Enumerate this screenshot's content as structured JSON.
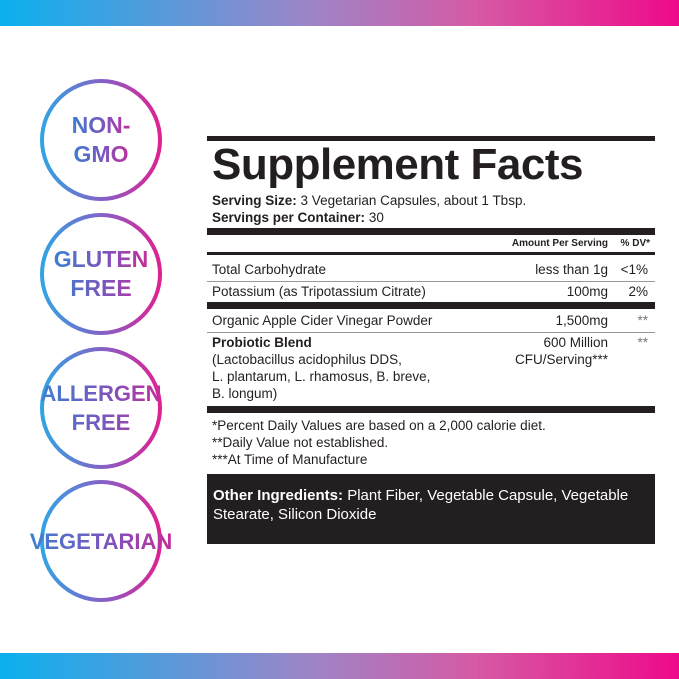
{
  "colors": {
    "gradient_start": "#0bb0ee",
    "gradient_end": "#ee0a8a",
    "panel": "#231f20"
  },
  "badges": [
    {
      "label": "NON-\nGMO"
    },
    {
      "label": "GLUTEN\nFREE"
    },
    {
      "label": "ALLERGEN\nFREE"
    },
    {
      "label": "VEGETARIAN"
    }
  ],
  "facts": {
    "title": "Supplement Facts",
    "serving_size_label": "Serving Size:",
    "serving_size": "3 Vegetarian Capsules, about 1 Tbsp.",
    "servings_label": "Servings per Container:",
    "servings": "30",
    "col_amount": "Amount Per Serving",
    "col_dv": "% DV*",
    "rows": [
      {
        "name": "Total Carbohydrate",
        "amount": "less than 1g",
        "dv": "<1%"
      },
      {
        "name": "Potassium (as Tripotassium Citrate)",
        "amount": "100mg",
        "dv": "2%"
      },
      {
        "name": "Organic Apple Cider Vinegar Powder",
        "amount": "1,500mg",
        "dv": "**"
      }
    ],
    "probiotic": {
      "name": "Probiotic Blend",
      "desc1": "(Lactobacillus acidophilus DDS,",
      "desc2": "L. plantarum, L. rhamosus, B. breve,",
      "desc3": "B. longum)",
      "amount1": "600 Million",
      "amount2": "CFU/Serving***",
      "dv": "**"
    },
    "footnotes": [
      "*Percent Daily Values are based on a 2,000 calorie diet.",
      "**Daily Value not established.",
      "***At Time of Manufacture"
    ],
    "other_label": "Other Ingredients:",
    "other": "Plant Fiber, Vegetable Capsule, Vegetable Stearate, Silicon Dioxide"
  }
}
